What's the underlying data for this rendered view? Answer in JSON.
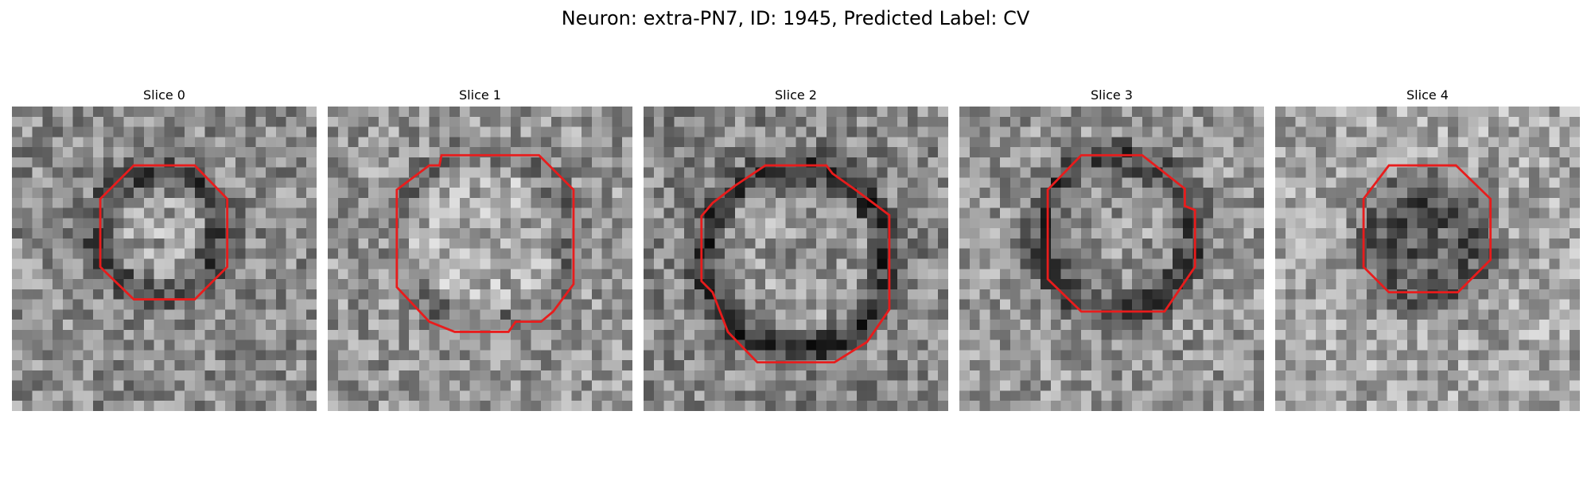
{
  "figure": {
    "title": "Neuron: extra-PN7, ID: 1945, Predicted Label: CV"
  },
  "colors": {
    "contour": "#e81c1c",
    "background": "#ffffff"
  },
  "slices": [
    {
      "title": "Slice 0",
      "ring": "dark-ring-around-bright-center",
      "seed": 11
    },
    {
      "title": "Slice 1",
      "ring": "faint-ring-bright-center",
      "seed": 23
    },
    {
      "title": "Slice 2",
      "ring": "strong-dark-ring",
      "seed": 37
    },
    {
      "title": "Slice 3",
      "ring": "dark-ring-grey-center",
      "seed": 53
    },
    {
      "title": "Slice 4",
      "ring": "dark-blob-center",
      "seed": 71
    }
  ]
}
